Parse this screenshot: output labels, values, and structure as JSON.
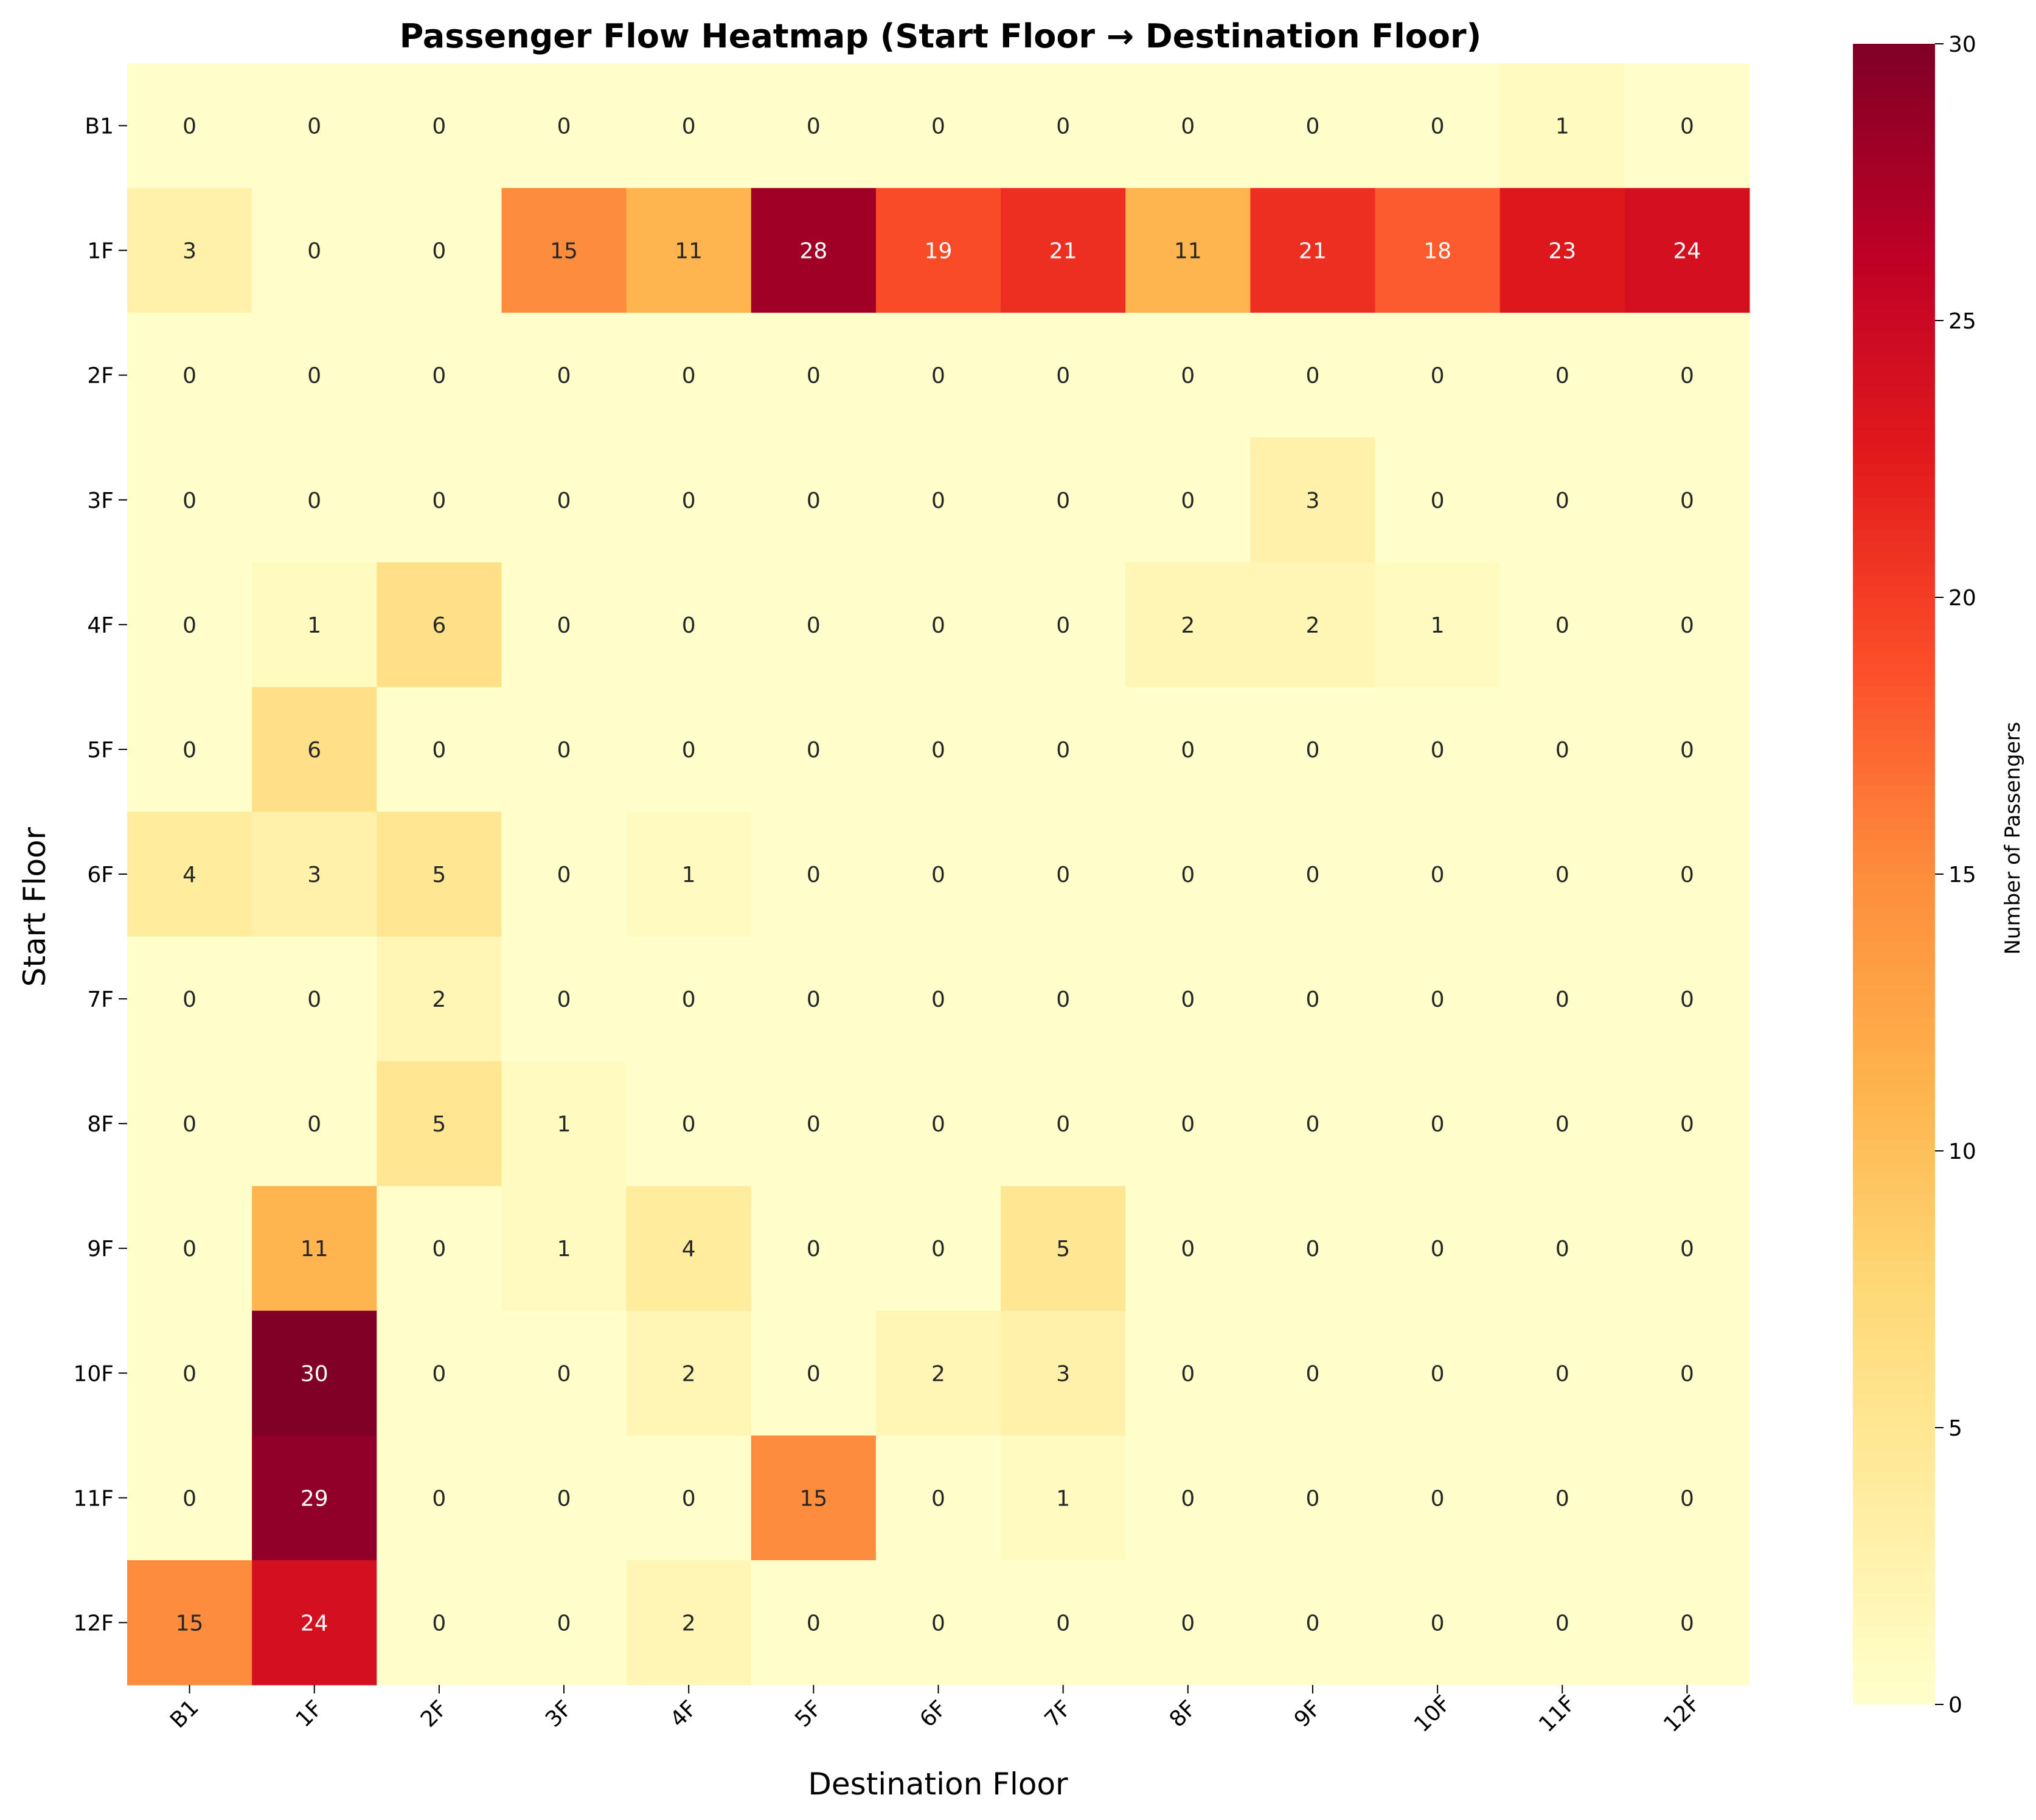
{
  "chart_data": {
    "type": "heatmap",
    "title": "Passenger Flow Heatmap (Start Floor → Destination Floor)",
    "xlabel": "Destination Floor",
    "ylabel": "Start Floor",
    "x_categories": [
      "B1",
      "1F",
      "2F",
      "3F",
      "4F",
      "5F",
      "6F",
      "7F",
      "8F",
      "9F",
      "10F",
      "11F",
      "12F"
    ],
    "y_categories": [
      "B1",
      "1F",
      "2F",
      "3F",
      "4F",
      "5F",
      "6F",
      "7F",
      "8F",
      "9F",
      "10F",
      "11F",
      "12F"
    ],
    "values": [
      [
        0,
        0,
        0,
        0,
        0,
        0,
        0,
        0,
        0,
        0,
        0,
        1,
        0
      ],
      [
        3,
        0,
        0,
        15,
        11,
        28,
        19,
        21,
        11,
        21,
        18,
        23,
        24
      ],
      [
        0,
        0,
        0,
        0,
        0,
        0,
        0,
        0,
        0,
        0,
        0,
        0,
        0
      ],
      [
        0,
        0,
        0,
        0,
        0,
        0,
        0,
        0,
        0,
        3,
        0,
        0,
        0
      ],
      [
        0,
        1,
        6,
        0,
        0,
        0,
        0,
        0,
        2,
        2,
        1,
        0,
        0
      ],
      [
        0,
        6,
        0,
        0,
        0,
        0,
        0,
        0,
        0,
        0,
        0,
        0,
        0
      ],
      [
        4,
        3,
        5,
        0,
        1,
        0,
        0,
        0,
        0,
        0,
        0,
        0,
        0
      ],
      [
        0,
        0,
        2,
        0,
        0,
        0,
        0,
        0,
        0,
        0,
        0,
        0,
        0
      ],
      [
        0,
        0,
        5,
        1,
        0,
        0,
        0,
        0,
        0,
        0,
        0,
        0,
        0
      ],
      [
        0,
        11,
        0,
        1,
        4,
        0,
        0,
        5,
        0,
        0,
        0,
        0,
        0
      ],
      [
        0,
        30,
        0,
        0,
        2,
        0,
        2,
        3,
        0,
        0,
        0,
        0,
        0
      ],
      [
        0,
        29,
        0,
        0,
        0,
        15,
        0,
        1,
        0,
        0,
        0,
        0,
        0
      ],
      [
        15,
        24,
        0,
        0,
        2,
        0,
        0,
        0,
        0,
        0,
        0,
        0,
        0
      ]
    ],
    "colorbar": {
      "label": "Number of Passengers",
      "min": 0,
      "max": 30,
      "ticks": [
        0,
        5,
        10,
        15,
        20,
        25,
        30
      ],
      "colormap": "YlOrRd"
    }
  }
}
